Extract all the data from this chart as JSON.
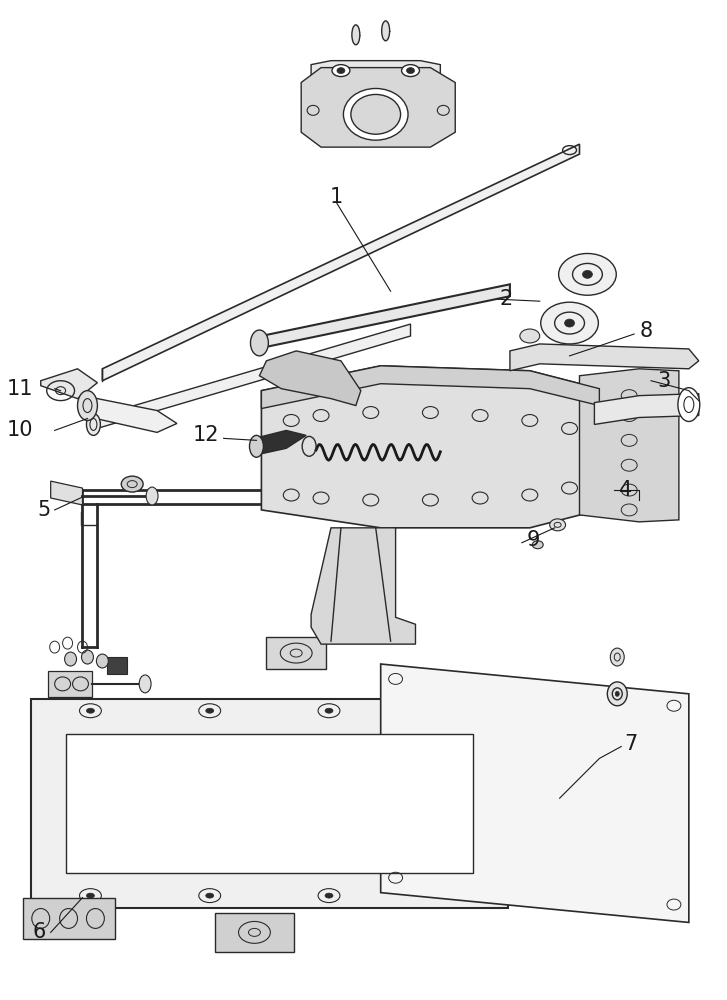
{
  "background_color": "#ffffff",
  "line_color": "#2a2a2a",
  "line_width": 1.0,
  "label_fontsize": 15,
  "label_color": "#1a1a1a",
  "fig_width": 7.27,
  "fig_height": 10.0,
  "dpi": 100
}
